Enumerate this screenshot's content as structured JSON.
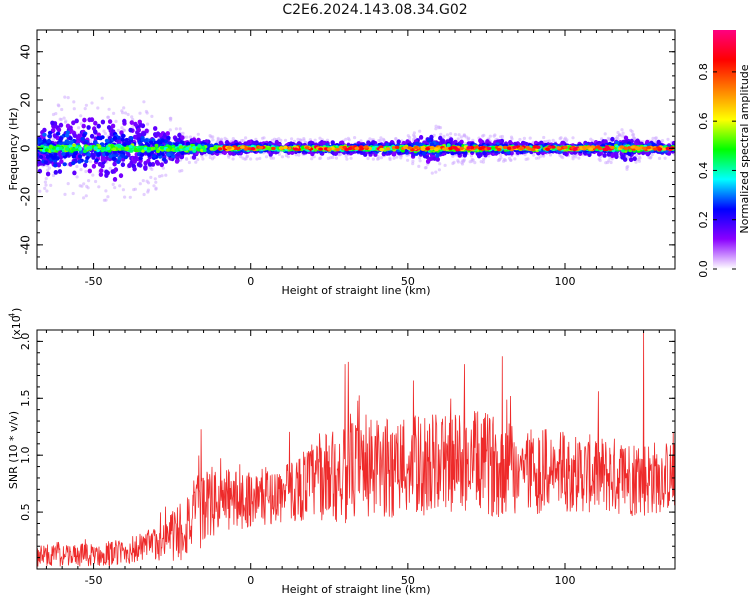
{
  "title": "C2E6.2024.143.08.34.G02",
  "chart_data": [
    {
      "type": "heatmap",
      "name": "spectrogram",
      "xlabel": "Height of straight line (km)",
      "ylabel": "Frequency (Hz)",
      "xlim": [
        -68,
        135
      ],
      "ylim": [
        -50,
        49
      ],
      "xticks": [
        -50,
        0,
        50,
        100
      ],
      "yticks": [
        -40,
        -20,
        0,
        20,
        40
      ],
      "colorbar": {
        "label": "Normalized spectral amplitude",
        "range": [
          0.0,
          0.97
        ],
        "ticks": [
          0.0,
          0.2,
          0.4,
          0.6,
          0.8
        ],
        "tick_labels": [
          "0.0",
          "0.2",
          "0.4",
          "0.6",
          "0.8"
        ],
        "colormap": [
          "#ffffff",
          "#8a00ff",
          "#0000ff",
          "#00ffff",
          "#00ff00",
          "#ffff00",
          "#ff8000",
          "#ff0000",
          "#ff0080"
        ]
      },
      "envelope": {
        "x": [
          -68,
          -60,
          -50,
          -40,
          -30,
          -25,
          -20,
          -10,
          0,
          20,
          40,
          50,
          55,
          58,
          62,
          70,
          90,
          110,
          115,
          120,
          125,
          135
        ],
        "half_width_hz": [
          10,
          12,
          12,
          12,
          10,
          7,
          4,
          2.5,
          2.5,
          2.5,
          2.5,
          3,
          5,
          6,
          4,
          3.5,
          2.5,
          2.5,
          4,
          5,
          3,
          2
        ]
      }
    },
    {
      "type": "line",
      "name": "snr",
      "xlabel": "Height of straight line (km)",
      "ylabel": "SNR (10 * v/v)",
      "yunit_label": "(x10",
      "yunit_exp": "4",
      "xlim": [
        -68,
        135
      ],
      "ylim": [
        0,
        2.1
      ],
      "xticks": [
        -50,
        0,
        50,
        100
      ],
      "yticks": [
        0.5,
        1.0,
        1.5,
        2.0
      ],
      "ytick_labels": [
        "0.5",
        "1.0",
        "1.5",
        "2.0"
      ],
      "color": "#ee2a2a",
      "series_trend": {
        "x": [
          -68,
          -50,
          -40,
          -30,
          -22,
          -15,
          -10,
          0,
          10,
          20,
          30,
          50,
          70,
          80,
          100,
          115,
          125,
          135
        ],
        "mean": [
          0.12,
          0.12,
          0.15,
          0.22,
          0.35,
          0.55,
          0.6,
          0.62,
          0.65,
          0.78,
          0.85,
          0.9,
          0.95,
          0.9,
          0.85,
          0.82,
          0.8,
          0.82
        ],
        "spread": [
          0.1,
          0.1,
          0.12,
          0.15,
          0.3,
          0.35,
          0.3,
          0.25,
          0.25,
          0.35,
          0.45,
          0.45,
          0.45,
          0.45,
          0.35,
          0.35,
          0.35,
          0.3
        ]
      },
      "peaks": [
        {
          "x": 30,
          "y": 1.8
        },
        {
          "x": 31,
          "y": 1.82
        },
        {
          "x": 68,
          "y": 1.8
        },
        {
          "x": 80,
          "y": 1.87
        },
        {
          "x": 125,
          "y": 2.1
        }
      ]
    }
  ]
}
